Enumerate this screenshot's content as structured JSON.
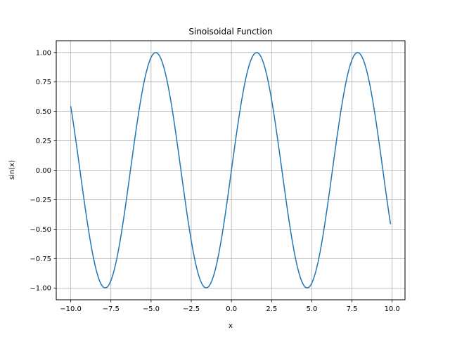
{
  "chart_data": {
    "type": "line",
    "title": "Sinoisoidal Function",
    "xlabel": "x",
    "ylabel": "sin(x)",
    "function": "sin(x)",
    "x_range": [
      -10.0,
      9.9
    ],
    "sample_step": 0.1,
    "xlim": [
      -10.9,
      10.8
    ],
    "ylim": [
      -1.1,
      1.1
    ],
    "x_ticks": [
      -10.0,
      -7.5,
      -5.0,
      -2.5,
      0.0,
      2.5,
      5.0,
      7.5,
      10.0
    ],
    "x_tick_labels": [
      "−10.0",
      "−7.5",
      "−5.0",
      "−2.5",
      "0.0",
      "2.5",
      "5.0",
      "7.5",
      "10.0"
    ],
    "y_ticks": [
      -1.0,
      -0.75,
      -0.5,
      -0.25,
      0.0,
      0.25,
      0.5,
      0.75,
      1.0
    ],
    "y_tick_labels": [
      "−1.00",
      "−0.75",
      "−0.50",
      "−0.25",
      "0.00",
      "0.25",
      "0.50",
      "0.75",
      "1.00"
    ],
    "grid": true,
    "series": [
      {
        "color": "#1f77b4"
      }
    ],
    "colors": {
      "grid": "#b0b0b0",
      "axis": "#000000"
    }
  }
}
